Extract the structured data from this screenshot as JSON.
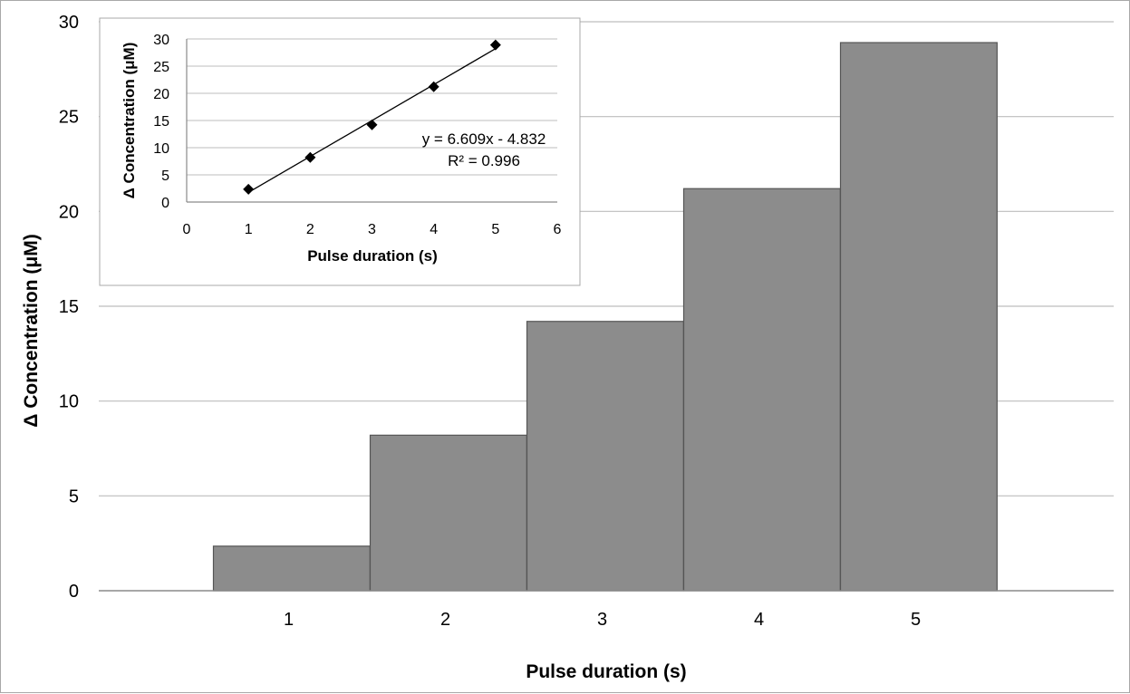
{
  "chart_data": [
    {
      "type": "bar",
      "categories": [
        "1",
        "2",
        "3",
        "4",
        "5"
      ],
      "values": [
        2.35,
        8.2,
        14.2,
        21.2,
        28.9
      ],
      "xlabel": "Pulse duration (s)",
      "ylabel": "Δ Concentration (μM)",
      "ylim": [
        0,
        30
      ],
      "yticks": [
        "0",
        "5",
        "10",
        "15",
        "20",
        "25",
        "30"
      ],
      "grid": true,
      "bar_color": "#8c8c8c"
    },
    {
      "type": "scatter",
      "x": [
        1,
        2,
        3,
        4,
        5
      ],
      "y": [
        2.35,
        8.2,
        14.2,
        21.2,
        28.9
      ],
      "xlabel": "Pulse duration (s)",
      "ylabel": "Δ Concentration (μM)",
      "xlim": [
        0,
        6
      ],
      "ylim": [
        0,
        30
      ],
      "xticks": [
        "0",
        "1",
        "2",
        "3",
        "4",
        "5",
        "6"
      ],
      "yticks": [
        "0",
        "5",
        "10",
        "15",
        "20",
        "25",
        "30"
      ],
      "grid": true,
      "trendline": {
        "slope": 6.609,
        "intercept": -4.832,
        "equation_label": "y = 6.609x - 4.832",
        "r2_label": "R² = 0.996"
      },
      "marker_color": "#000000"
    }
  ]
}
